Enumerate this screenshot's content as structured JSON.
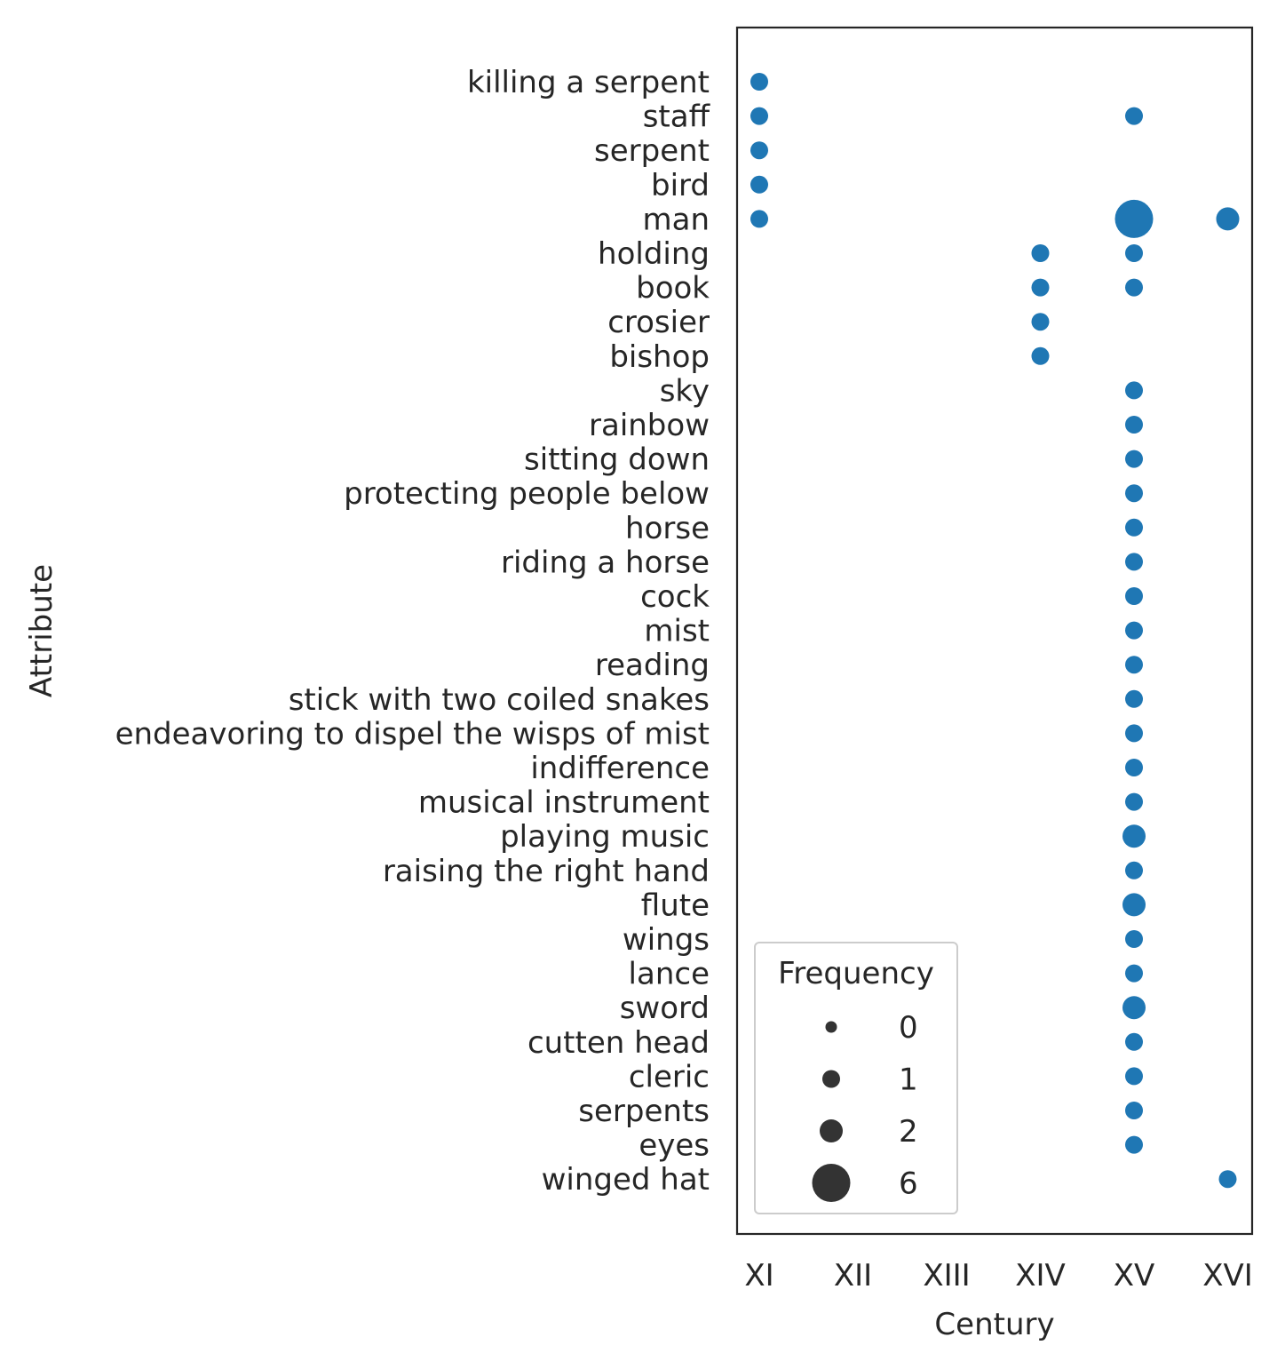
{
  "chart_data": {
    "type": "scatter",
    "title": "",
    "xlabel": "Century",
    "ylabel": "Attribute",
    "x_categories": [
      "XI",
      "XII",
      "XIII",
      "XIV",
      "XV",
      "XVI"
    ],
    "y_categories": [
      "killing a serpent",
      "staff",
      "serpent",
      "bird",
      "man",
      "holding",
      "book",
      "crosier",
      "bishop",
      "sky",
      "rainbow",
      "sitting down",
      "protecting people below",
      "horse",
      "riding a horse",
      "cock",
      "mist",
      "reading",
      "stick with two coiled snakes",
      "endeavoring to dispel the wisps of mist",
      "indifference",
      "musical instrument",
      "playing music",
      "raising the right hand",
      "flute",
      "wings",
      "lance",
      "sword",
      "cutten head",
      "cleric",
      "serpents",
      "eyes",
      "winged hat"
    ],
    "points": [
      {
        "x": "XI",
        "y": "killing a serpent",
        "frequency": 1
      },
      {
        "x": "XI",
        "y": "staff",
        "frequency": 1
      },
      {
        "x": "XI",
        "y": "serpent",
        "frequency": 1
      },
      {
        "x": "XI",
        "y": "bird",
        "frequency": 1
      },
      {
        "x": "XI",
        "y": "man",
        "frequency": 1
      },
      {
        "x": "XV",
        "y": "staff",
        "frequency": 1
      },
      {
        "x": "XV",
        "y": "man",
        "frequency": 6
      },
      {
        "x": "XVI",
        "y": "man",
        "frequency": 2
      },
      {
        "x": "XIV",
        "y": "holding",
        "frequency": 1
      },
      {
        "x": "XV",
        "y": "holding",
        "frequency": 1
      },
      {
        "x": "XIV",
        "y": "book",
        "frequency": 1
      },
      {
        "x": "XV",
        "y": "book",
        "frequency": 1
      },
      {
        "x": "XIV",
        "y": "crosier",
        "frequency": 1
      },
      {
        "x": "XIV",
        "y": "bishop",
        "frequency": 1
      },
      {
        "x": "XV",
        "y": "sky",
        "frequency": 1
      },
      {
        "x": "XV",
        "y": "rainbow",
        "frequency": 1
      },
      {
        "x": "XV",
        "y": "sitting down",
        "frequency": 1
      },
      {
        "x": "XV",
        "y": "protecting people below",
        "frequency": 1
      },
      {
        "x": "XV",
        "y": "horse",
        "frequency": 1
      },
      {
        "x": "XV",
        "y": "riding a horse",
        "frequency": 1
      },
      {
        "x": "XV",
        "y": "cock",
        "frequency": 1
      },
      {
        "x": "XV",
        "y": "mist",
        "frequency": 1
      },
      {
        "x": "XV",
        "y": "reading",
        "frequency": 1
      },
      {
        "x": "XV",
        "y": "stick with two coiled snakes",
        "frequency": 1
      },
      {
        "x": "XV",
        "y": "endeavoring to dispel the wisps of mist",
        "frequency": 1
      },
      {
        "x": "XV",
        "y": "indifference",
        "frequency": 1
      },
      {
        "x": "XV",
        "y": "musical instrument",
        "frequency": 1
      },
      {
        "x": "XV",
        "y": "playing music",
        "frequency": 2
      },
      {
        "x": "XV",
        "y": "raising the right hand",
        "frequency": 1
      },
      {
        "x": "XV",
        "y": "flute",
        "frequency": 2
      },
      {
        "x": "XV",
        "y": "wings",
        "frequency": 1
      },
      {
        "x": "XV",
        "y": "lance",
        "frequency": 1
      },
      {
        "x": "XV",
        "y": "sword",
        "frequency": 2
      },
      {
        "x": "XV",
        "y": "cutten head",
        "frequency": 1
      },
      {
        "x": "XV",
        "y": "cleric",
        "frequency": 1
      },
      {
        "x": "XV",
        "y": "serpents",
        "frequency": 1
      },
      {
        "x": "XV",
        "y": "eyes",
        "frequency": 1
      },
      {
        "x": "XVI",
        "y": "winged hat",
        "frequency": 1
      }
    ],
    "legend": {
      "title": "Frequency",
      "placement": "lower-left",
      "entries": [
        {
          "label": "0",
          "frequency": 0
        },
        {
          "label": "1",
          "frequency": 1
        },
        {
          "label": "2",
          "frequency": 2
        },
        {
          "label": "6",
          "frequency": 6
        }
      ]
    },
    "grid": false,
    "colors": {
      "point": "#1f77b4",
      "legend_marker": "#333333",
      "axis": "#262626",
      "legend_border": "#cccccc"
    }
  }
}
